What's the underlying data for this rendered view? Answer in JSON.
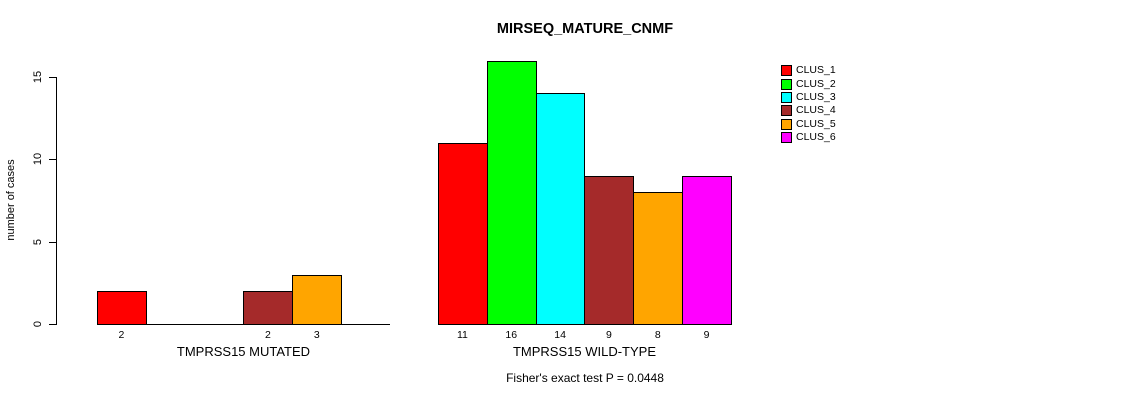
{
  "chart_data": {
    "type": "bar",
    "title": "MIRSEQ_MATURE_CNMF",
    "ylabel": "number of cases",
    "ylim": [
      0,
      15
    ],
    "yticks": [
      0,
      5,
      10,
      15
    ],
    "grid": false,
    "legend_position": "right-outside",
    "legend": [
      {
        "label": "CLUS_1",
        "color": "#FF0000"
      },
      {
        "label": "CLUS_2",
        "color": "#00FF00"
      },
      {
        "label": "CLUS_3",
        "color": "#00FFFF"
      },
      {
        "label": "CLUS_4",
        "color": "#A52A2A"
      },
      {
        "label": "CLUS_5",
        "color": "#FFA500"
      },
      {
        "label": "CLUS_6",
        "color": "#FF00FF"
      }
    ],
    "groups": [
      {
        "label": "TMPRSS15 MUTATED",
        "values": [
          2,
          0,
          0,
          2,
          3,
          0
        ]
      },
      {
        "label": "TMPRSS15 WILD-TYPE",
        "values": [
          11,
          16,
          14,
          9,
          8,
          9
        ]
      }
    ],
    "bar_value_labels": "shown below non-zero bars",
    "annotation": "Fisher's exact test P = 0.0448"
  }
}
